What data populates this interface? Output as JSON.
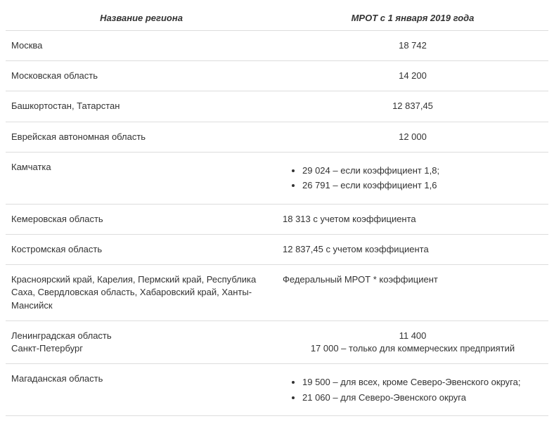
{
  "table": {
    "columns": [
      {
        "key": "region",
        "header": "Название региона",
        "align": "left",
        "width": "48%"
      },
      {
        "key": "value",
        "header": "МРОТ с 1 января 2019 года",
        "align": "center",
        "width": "52%"
      }
    ],
    "rows": [
      {
        "region": "Москва",
        "type": "number",
        "value": "18 742"
      },
      {
        "region": "Московская область",
        "type": "number",
        "value": "14 200"
      },
      {
        "region": "Башкортостан, Татарстан",
        "type": "number",
        "value": "12 837,45"
      },
      {
        "region": "Еврейская автономная область",
        "type": "number",
        "value": "12 000"
      },
      {
        "region": "Камчатка",
        "type": "bullets",
        "bullets": [
          "29 024 – если коэффициент 1,8;",
          "26 791 – если коэффициент 1,6"
        ]
      },
      {
        "region": "Кемеровская область",
        "type": "text",
        "value": "18 313 с учетом коэффициента"
      },
      {
        "region": "Костромская область",
        "type": "text",
        "value": "12 837,45 с учетом коэффициента"
      },
      {
        "region": "Красноярский край, Карелия, Пермский край, Республика Саха, Свердловская область, Хабаровский край, Ханты-Мансийск",
        "type": "text",
        "value": "Федеральный МРОТ * коэффициент"
      },
      {
        "region": "Ленинградская область\nСанкт-Петербург",
        "type": "multiline",
        "lines": [
          "11 400",
          "17 000 – только для коммерческих предприятий"
        ]
      },
      {
        "region": "Магаданская область",
        "type": "bullets",
        "bullets": [
          "19 500 – для всех, кроме Северо-Эвенского округа;",
          "21 060 – для Северо-Эвенского округа"
        ]
      }
    ]
  },
  "colors": {
    "border": "#dddddd",
    "text": "#333333",
    "bg": "#ffffff"
  },
  "typography": {
    "font_family": "Arial, Helvetica, sans-serif",
    "body_fontsize_pt": 10,
    "header_fontsize_pt": 10,
    "header_italic": true,
    "header_bold": true
  }
}
